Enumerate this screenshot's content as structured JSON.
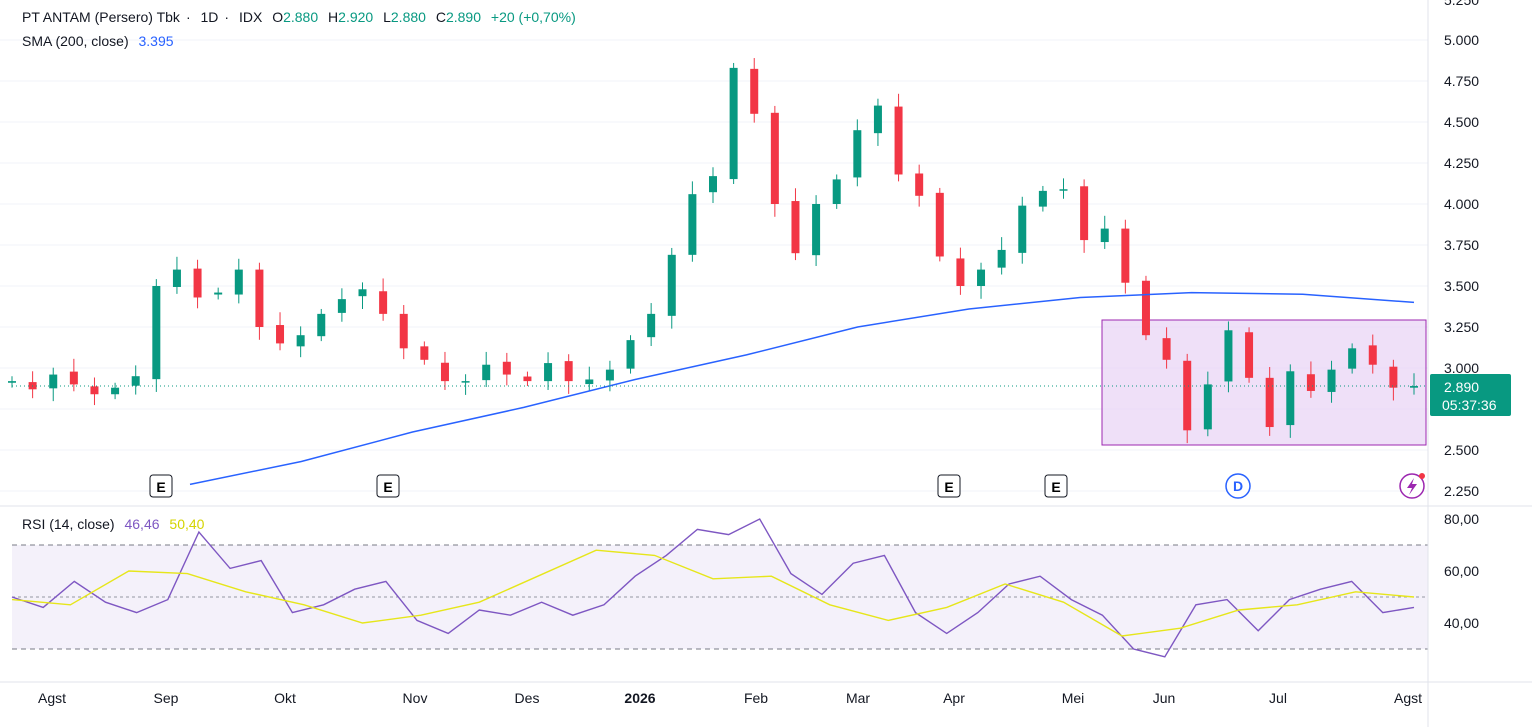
{
  "header": {
    "symbol": "PT ANTAM (Persero) Tbk",
    "interval": "1D",
    "exchange": "IDX",
    "o_label": "O",
    "open": "2.880",
    "h_label": "H",
    "high": "2.920",
    "l_label": "L",
    "low": "2.880",
    "c_label": "C",
    "close": "2.890",
    "change": "+20 (+0,70%)",
    "sma_label": "SMA (200, close)",
    "sma_value": "3.395",
    "rsi_label": "RSI (14, close)",
    "rsi_value": "46,46",
    "rsi_ma_value": "50,40"
  },
  "price_badge": {
    "price": "2.890",
    "countdown": "05:37:36"
  },
  "event_markers": {
    "earnings": "E",
    "dividend": "D"
  },
  "colors": {
    "up": "#089981",
    "down": "#f23645",
    "sma": "#2962ff",
    "rsi": "#7e57c2",
    "rsi_ma": "#e6e61a",
    "rect_fill": "#e9d5f5",
    "rect_border": "#9c27b0",
    "rsi_band": "#ede7f6"
  },
  "chart_data": {
    "type": "candlestick",
    "price_axis": {
      "ticks": [
        "5.000",
        "4.750",
        "4.500",
        "4.250",
        "4.000",
        "3.750",
        "3.500",
        "3.250",
        "3.000",
        "2.750",
        "2.500",
        "2.250"
      ],
      "top_partial": "5.250"
    },
    "rsi_axis": {
      "ticks": [
        "80,00",
        "60,00",
        "40,00"
      ],
      "levels": [
        70,
        50,
        30
      ]
    },
    "time_axis": [
      "Agst",
      "Sep",
      "Okt",
      "Nov",
      "Des",
      "2026",
      "Feb",
      "Mar",
      "Apr",
      "Mei",
      "Jun",
      "Jul",
      "Agst"
    ],
    "last_close": 2890,
    "sma_last": 3395,
    "price_series": [
      [
        "Agst",
        2920
      ],
      [
        "Agst",
        2870
      ],
      [
        "Agst",
        2960
      ],
      [
        "Agst",
        2900
      ],
      [
        "Agst",
        2840
      ],
      [
        "Sep",
        2880
      ],
      [
        "Sep",
        2950
      ],
      [
        "Sep",
        3500
      ],
      [
        "Sep",
        3600
      ],
      [
        "Sep",
        3430
      ],
      [
        "Sep",
        3460
      ],
      [
        "Sep",
        3600
      ],
      [
        "Okt",
        3250
      ],
      [
        "Okt",
        3150
      ],
      [
        "Okt",
        3200
      ],
      [
        "Okt",
        3330
      ],
      [
        "Okt",
        3420
      ],
      [
        "Okt",
        3480
      ],
      [
        "Okt",
        3330
      ],
      [
        "Nov",
        3120
      ],
      [
        "Nov",
        3050
      ],
      [
        "Nov",
        2920
      ],
      [
        "Nov",
        2920
      ],
      [
        "Nov",
        3020
      ],
      [
        "Nov",
        2960
      ],
      [
        "Nov",
        2920
      ],
      [
        "Des",
        3030
      ],
      [
        "Des",
        2920
      ],
      [
        "Des",
        2930
      ],
      [
        "Des",
        2990
      ],
      [
        "Des",
        3170
      ],
      [
        "2026",
        3330
      ],
      [
        "2026",
        3690
      ],
      [
        "2026",
        4060
      ],
      [
        "2026",
        4170
      ],
      [
        "2026",
        4830
      ],
      [
        "2026",
        4550
      ],
      [
        "Feb",
        4000
      ],
      [
        "Feb",
        3700
      ],
      [
        "Feb",
        4000
      ],
      [
        "Feb",
        4150
      ],
      [
        "Feb",
        4450
      ],
      [
        "Mar",
        4600
      ],
      [
        "Mar",
        4180
      ],
      [
        "Mar",
        4050
      ],
      [
        "Mar",
        3680
      ],
      [
        "Mar",
        3500
      ],
      [
        "Apr",
        3600
      ],
      [
        "Apr",
        3720
      ],
      [
        "Apr",
        3990
      ],
      [
        "Apr",
        4080
      ],
      [
        "Apr",
        4090
      ],
      [
        "Mei",
        3780
      ],
      [
        "Mei",
        3850
      ],
      [
        "Mei",
        3520
      ],
      [
        "Mei",
        3200
      ],
      [
        "Mei",
        3050
      ],
      [
        "Jun",
        2620
      ],
      [
        "Jun",
        2900
      ],
      [
        "Jun",
        3230
      ],
      [
        "Jun",
        2940
      ],
      [
        "Jun",
        2640
      ],
      [
        "Jul",
        2980
      ],
      [
        "Jul",
        2860
      ],
      [
        "Jul",
        2990
      ],
      [
        "Jul",
        3120
      ],
      [
        "Jul",
        3020
      ],
      [
        "Agst",
        2880
      ],
      [
        "Agst",
        2890
      ]
    ],
    "sma_series": [
      [
        "Sep",
        2290
      ],
      [
        "Okt",
        2430
      ],
      [
        "Nov",
        2610
      ],
      [
        "Des",
        2760
      ],
      [
        "2026",
        2930
      ],
      [
        "Feb",
        3080
      ],
      [
        "Mar",
        3250
      ],
      [
        "Apr",
        3360
      ],
      [
        "Mei",
        3430
      ],
      [
        "Jun",
        3460
      ],
      [
        "Jul",
        3450
      ],
      [
        "Agst",
        3400
      ]
    ],
    "rsi_series": [
      [
        "Agst",
        50
      ],
      [
        "Agst",
        46
      ],
      [
        "Agst",
        56
      ],
      [
        "Agst",
        48
      ],
      [
        "Sep",
        44
      ],
      [
        "Sep",
        49
      ],
      [
        "Sep",
        75
      ],
      [
        "Sep",
        61
      ],
      [
        "Sep",
        64
      ],
      [
        "Okt",
        44
      ],
      [
        "Okt",
        47
      ],
      [
        "Okt",
        53
      ],
      [
        "Okt",
        56
      ],
      [
        "Nov",
        41
      ],
      [
        "Nov",
        36
      ],
      [
        "Nov",
        45
      ],
      [
        "Nov",
        43
      ],
      [
        "Des",
        48
      ],
      [
        "Des",
        43
      ],
      [
        "Des",
        47
      ],
      [
        "Des",
        58
      ],
      [
        "2026",
        66
      ],
      [
        "2026",
        76
      ],
      [
        "2026",
        74
      ],
      [
        "2026",
        80
      ],
      [
        "Feb",
        59
      ],
      [
        "Feb",
        51
      ],
      [
        "Feb",
        63
      ],
      [
        "Mar",
        66
      ],
      [
        "Mar",
        44
      ],
      [
        "Mar",
        36
      ],
      [
        "Apr",
        44
      ],
      [
        "Apr",
        55
      ],
      [
        "Apr",
        58
      ],
      [
        "Mei",
        49
      ],
      [
        "Mei",
        43
      ],
      [
        "Mei",
        30
      ],
      [
        "Jun",
        27
      ],
      [
        "Jun",
        47
      ],
      [
        "Jun",
        49
      ],
      [
        "Jul",
        37
      ],
      [
        "Jul",
        49
      ],
      [
        "Jul",
        53
      ],
      [
        "Jul",
        56
      ],
      [
        "Agst",
        44
      ],
      [
        "Agst",
        46
      ]
    ],
    "rsi_ma_series": [
      [
        "Agst",
        49
      ],
      [
        "Sep",
        47
      ],
      [
        "Sep",
        60
      ],
      [
        "Okt",
        59
      ],
      [
        "Okt",
        52
      ],
      [
        "Nov",
        47
      ],
      [
        "Nov",
        40
      ],
      [
        "Des",
        43
      ],
      [
        "Des",
        48
      ],
      [
        "2026",
        58
      ],
      [
        "2026",
        68
      ],
      [
        "Feb",
        66
      ],
      [
        "Feb",
        57
      ],
      [
        "Mar",
        58
      ],
      [
        "Mar",
        47
      ],
      [
        "Apr",
        41
      ],
      [
        "Apr",
        46
      ],
      [
        "Mei",
        55
      ],
      [
        "Mei",
        48
      ],
      [
        "Jun",
        35
      ],
      [
        "Jun",
        38
      ],
      [
        "Jul",
        45
      ],
      [
        "Jul",
        47
      ],
      [
        "Agst",
        52
      ],
      [
        "Agst",
        50
      ]
    ]
  }
}
